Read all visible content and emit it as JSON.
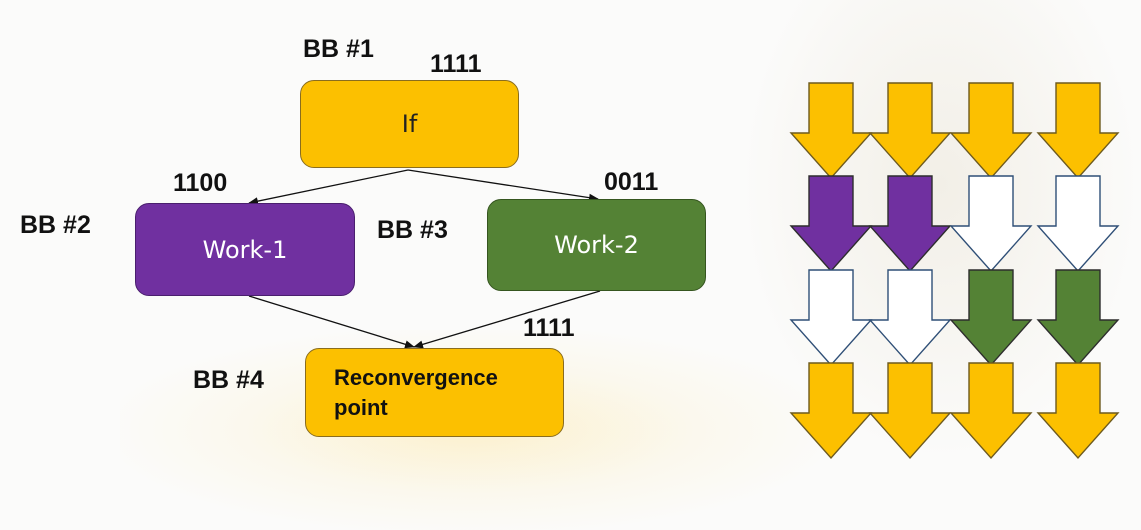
{
  "diagram": {
    "blocks": [
      {
        "id": "bb1",
        "label": "BB #1",
        "mask": "1111",
        "text": "If",
        "color": "#fcc000"
      },
      {
        "id": "bb2",
        "label": "BB #2",
        "mask": "1100",
        "text": "Work-1",
        "color": "#7030a0"
      },
      {
        "id": "bb3",
        "label": "BB #3",
        "mask": "0011",
        "text": "Work-2",
        "color": "#548235"
      },
      {
        "id": "bb4",
        "label": "BB #4",
        "mask": "1111",
        "text_line1": "Reconvergence",
        "text_line2": "point",
        "color": "#fcc000"
      }
    ],
    "edges": [
      {
        "from": "bb1",
        "to": "bb2"
      },
      {
        "from": "bb1",
        "to": "bb3"
      },
      {
        "from": "bb2",
        "to": "bb4"
      },
      {
        "from": "bb3",
        "to": "bb4"
      }
    ]
  },
  "thread_grid": {
    "colors": {
      "yellow": "#fcc000",
      "purple": "#7030a0",
      "green": "#548235",
      "empty": "#ffffff"
    },
    "rows": [
      [
        "yellow",
        "yellow",
        "yellow",
        "yellow"
      ],
      [
        "purple",
        "purple",
        "empty",
        "empty"
      ],
      [
        "empty",
        "empty",
        "green",
        "green"
      ],
      [
        "yellow",
        "yellow",
        "yellow",
        "yellow"
      ]
    ]
  }
}
